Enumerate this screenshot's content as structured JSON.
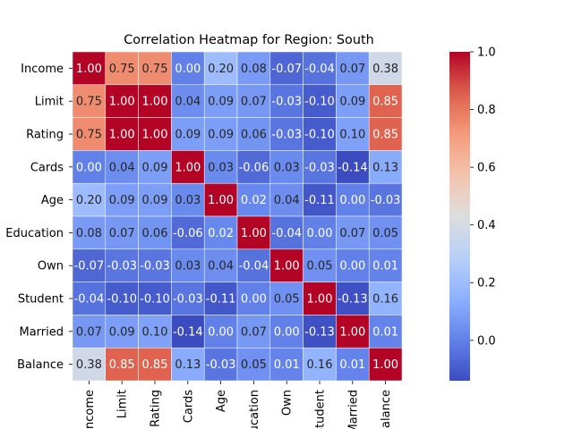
{
  "chart_data": {
    "type": "heatmap",
    "title": "Correlation Heatmap for Region: South",
    "xlabel": "",
    "ylabel": "",
    "labels": [
      "Income",
      "Limit",
      "Rating",
      "Cards",
      "Age",
      "Education",
      "Own",
      "Student",
      "Married",
      "Balance"
    ],
    "matrix": [
      [
        1.0,
        0.75,
        0.75,
        0.0,
        0.2,
        0.08,
        -0.07,
        -0.04,
        0.07,
        0.38
      ],
      [
        0.75,
        1.0,
        1.0,
        0.04,
        0.09,
        0.07,
        -0.03,
        -0.1,
        0.09,
        0.85
      ],
      [
        0.75,
        1.0,
        1.0,
        0.09,
        0.09,
        0.06,
        -0.03,
        -0.1,
        0.1,
        0.85
      ],
      [
        0.0,
        0.04,
        0.09,
        1.0,
        0.03,
        -0.06,
        0.03,
        -0.03,
        -0.14,
        0.13
      ],
      [
        0.2,
        0.09,
        0.09,
        0.03,
        1.0,
        0.02,
        0.04,
        -0.11,
        0.0,
        -0.03
      ],
      [
        0.08,
        0.07,
        0.06,
        -0.06,
        0.02,
        1.0,
        -0.04,
        -0.0,
        0.07,
        0.05
      ],
      [
        -0.07,
        -0.03,
        -0.03,
        0.03,
        0.04,
        -0.04,
        1.0,
        0.05,
        -0.0,
        0.01
      ],
      [
        -0.04,
        -0.1,
        -0.1,
        -0.03,
        -0.11,
        -0.0,
        0.05,
        1.0,
        -0.13,
        0.16
      ],
      [
        0.07,
        0.09,
        0.1,
        -0.14,
        0.0,
        0.07,
        -0.0,
        -0.13,
        1.0,
        0.01
      ],
      [
        0.38,
        0.85,
        0.85,
        0.13,
        -0.03,
        0.05,
        0.01,
        0.16,
        0.01,
        1.0
      ]
    ],
    "colormap": "coolwarm",
    "vmin": -0.14,
    "vmax": 1.0,
    "colorbar_ticks": [
      0.0,
      0.2,
      0.4,
      0.6,
      0.8,
      1.0
    ],
    "annotation_format": "0.00",
    "cell_line_color": "#ffffff",
    "x_tick_rotation": "vertical"
  }
}
